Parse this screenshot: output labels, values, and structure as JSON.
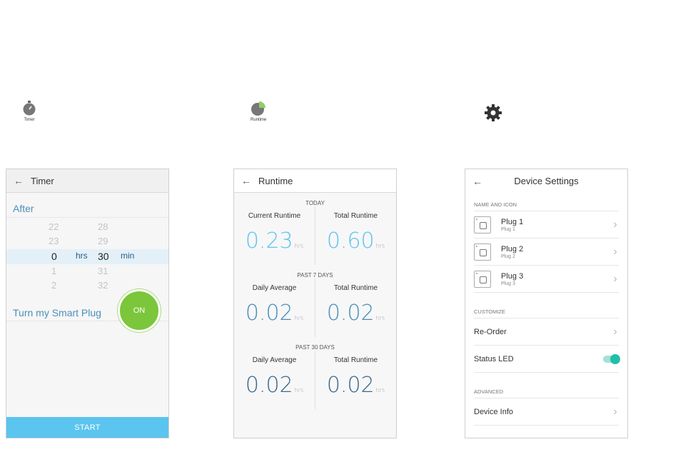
{
  "top_icons": {
    "timer": {
      "icon": "stopwatch-icon",
      "caption": "Timer"
    },
    "runtime": {
      "icon": "pie-chart-icon",
      "caption": "Runtime"
    },
    "settings": {
      "icon": "gear-icon"
    }
  },
  "timer_screen": {
    "title": "Timer",
    "after_label": "After",
    "hours_column": [
      "22",
      "23",
      "0",
      "1",
      "2"
    ],
    "minutes_column": [
      "28",
      "29",
      "30",
      "31",
      "32"
    ],
    "hrs_label": "hrs",
    "min_label": "min",
    "turn_label": "Turn my Smart Plug",
    "on_label": "ON",
    "start_label": "START"
  },
  "runtime_screen": {
    "title": "Runtime",
    "unit": "hrs",
    "sections": [
      {
        "label": "TODAY",
        "left_label": "Current Runtime",
        "left_value": "0.23",
        "right_label": "Total Runtime",
        "right_value": "0.60"
      },
      {
        "label": "PAST 7 DAYS",
        "left_label": "Daily Average",
        "left_value": "0.02",
        "right_label": "Total Runtime",
        "right_value": "0.02"
      },
      {
        "label": "PAST 30 DAYS",
        "left_label": "Daily Average",
        "left_value": "0.02",
        "right_label": "Total Runtime",
        "right_value": "0.02"
      }
    ]
  },
  "settings_screen": {
    "title": "Device Settings",
    "name_icon_group": "NAME AND ICON",
    "plugs": [
      {
        "name": "Plug 1",
        "sub": "Plug 1"
      },
      {
        "name": "Plug 2",
        "sub": "Plug 2"
      },
      {
        "name": "Plug 3",
        "sub": "Plug 3"
      }
    ],
    "customize_group": "CUSTOMIZE",
    "reorder_label": "Re-Order",
    "status_led_label": "Status LED",
    "status_led_on": true,
    "advanced_group": "ADVANCED",
    "device_info_label": "Device Info"
  },
  "colors": {
    "accent_blue": "#5bc4ef",
    "on_green": "#7bc63b",
    "toggle_teal": "#1fc0a8"
  }
}
